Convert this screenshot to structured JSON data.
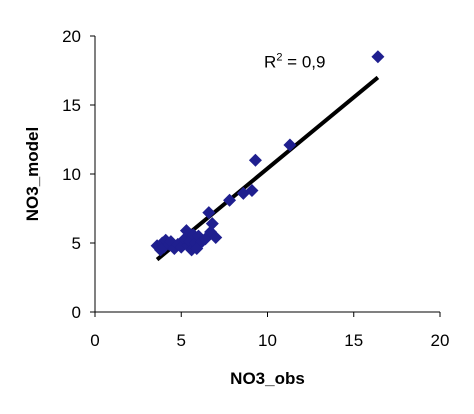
{
  "chart_data": {
    "type": "scatter",
    "xlabel": "NO3_obs",
    "ylabel": "NO3_model",
    "xlim": [
      0,
      20
    ],
    "ylim": [
      0,
      20
    ],
    "x_ticks": [
      0,
      5,
      10,
      15,
      20
    ],
    "y_ticks": [
      0,
      5,
      10,
      15,
      20
    ],
    "x_tick_labels": [
      "0",
      "5",
      "10",
      "15",
      "20"
    ],
    "y_tick_labels": [
      "0",
      "5",
      "10",
      "15",
      "20"
    ],
    "grid": false,
    "marker_color": "#1f1f8f",
    "line_color": "#000000",
    "points": [
      {
        "x": 3.6,
        "y": 4.8
      },
      {
        "x": 3.8,
        "y": 4.5
      },
      {
        "x": 3.9,
        "y": 5.0
      },
      {
        "x": 4.0,
        "y": 4.7
      },
      {
        "x": 4.1,
        "y": 5.2
      },
      {
        "x": 4.3,
        "y": 4.9
      },
      {
        "x": 4.4,
        "y": 5.1
      },
      {
        "x": 4.6,
        "y": 4.6
      },
      {
        "x": 4.8,
        "y": 4.9
      },
      {
        "x": 5.0,
        "y": 4.7
      },
      {
        "x": 5.2,
        "y": 5.3
      },
      {
        "x": 5.3,
        "y": 5.9
      },
      {
        "x": 5.4,
        "y": 4.8
      },
      {
        "x": 5.5,
        "y": 5.1
      },
      {
        "x": 5.6,
        "y": 4.5
      },
      {
        "x": 5.7,
        "y": 5.6
      },
      {
        "x": 5.8,
        "y": 5.0
      },
      {
        "x": 5.9,
        "y": 4.6
      },
      {
        "x": 6.0,
        "y": 5.5
      },
      {
        "x": 6.2,
        "y": 5.1
      },
      {
        "x": 6.4,
        "y": 5.3
      },
      {
        "x": 6.6,
        "y": 7.2
      },
      {
        "x": 6.7,
        "y": 5.8
      },
      {
        "x": 6.8,
        "y": 6.4
      },
      {
        "x": 7.0,
        "y": 5.4
      },
      {
        "x": 7.8,
        "y": 8.1
      },
      {
        "x": 8.6,
        "y": 8.6
      },
      {
        "x": 9.1,
        "y": 8.8
      },
      {
        "x": 9.3,
        "y": 11.0
      },
      {
        "x": 11.3,
        "y": 12.1
      },
      {
        "x": 16.4,
        "y": 18.5
      }
    ],
    "trendline": {
      "x": [
        3.6,
        16.4
      ],
      "y": [
        3.8,
        17.0
      ]
    },
    "annotation": {
      "text_base": "R",
      "text_sup": "2",
      "text_rest": " = 0,9",
      "x": 9.8,
      "y": 17.7
    }
  }
}
